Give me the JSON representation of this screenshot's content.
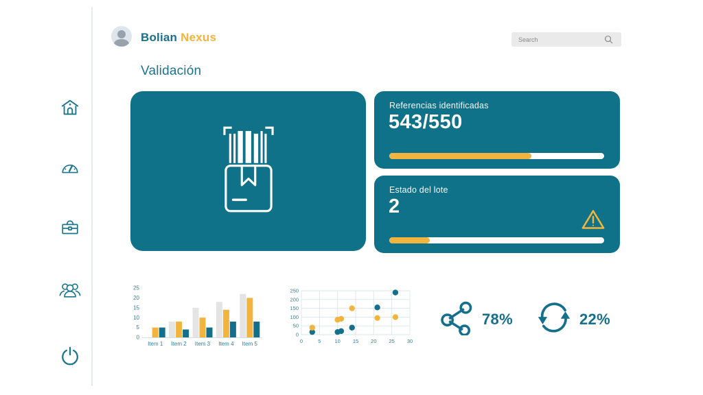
{
  "colors": {
    "teal_card": "#107288",
    "teal_icon": "#17768c",
    "teal_text": "#1d7390",
    "tick_text": "#2e7e99",
    "yellow": "#f1b43f",
    "gray_bar": "#e4e4e4",
    "white": "#ffffff"
  },
  "header": {
    "brand_primary": "Bolian",
    "brand_accent": "Nexus",
    "search_placeholder": "Search"
  },
  "page_title": "Validación",
  "sidebar": {
    "items": [
      {
        "name": "home"
      },
      {
        "name": "gauge"
      },
      {
        "name": "briefcase"
      },
      {
        "name": "users"
      },
      {
        "name": "power"
      }
    ]
  },
  "cards": {
    "references": {
      "label": "Referencias identificadas",
      "value": "543/550",
      "progress_pct": 66
    },
    "batch": {
      "label": "Estado del lote",
      "value": "2",
      "progress_pct": 19,
      "warning_icon": "warning-triangle"
    }
  },
  "stats": [
    {
      "icon": "share-icon",
      "value": "78%"
    },
    {
      "icon": "refresh-icon",
      "value": "22%"
    }
  ],
  "chart_data": [
    {
      "type": "bar",
      "title": "",
      "categories": [
        "Item 1",
        "Item 2",
        "Item 3",
        "Item 4",
        "Item 5"
      ],
      "series": [
        {
          "name": "gray",
          "color": "#e4e4e4",
          "values": [
            0,
            8,
            15,
            18,
            22
          ]
        },
        {
          "name": "yellow",
          "color": "#f1b43f",
          "values": [
            5,
            8,
            10,
            14,
            20
          ]
        },
        {
          "name": "teal",
          "color": "#136f8a",
          "values": [
            5,
            4,
            5,
            8,
            8
          ]
        }
      ],
      "ylim": [
        0,
        25
      ],
      "yticks": [
        0,
        5,
        10,
        15,
        20,
        25
      ],
      "grid": false,
      "legend": false
    },
    {
      "type": "scatter",
      "title": "",
      "series": [
        {
          "name": "teal",
          "color": "#136f8a",
          "points": [
            [
              3,
              15
            ],
            [
              10,
              15
            ],
            [
              11,
              20
            ],
            [
              14,
              40
            ],
            [
              21,
              155
            ],
            [
              26,
              240
            ]
          ]
        },
        {
          "name": "yellow",
          "color": "#f1b43f",
          "points": [
            [
              3,
              40
            ],
            [
              10,
              85
            ],
            [
              11,
              90
            ],
            [
              14,
              150
            ],
            [
              21,
              95
            ],
            [
              26,
              100
            ]
          ]
        }
      ],
      "xlim": [
        0,
        30
      ],
      "ylim": [
        0,
        250
      ],
      "xticks": [
        0,
        5,
        10,
        15,
        20,
        25,
        30
      ],
      "yticks": [
        0,
        50,
        100,
        150,
        200,
        250
      ],
      "grid": true,
      "legend": false
    }
  ]
}
